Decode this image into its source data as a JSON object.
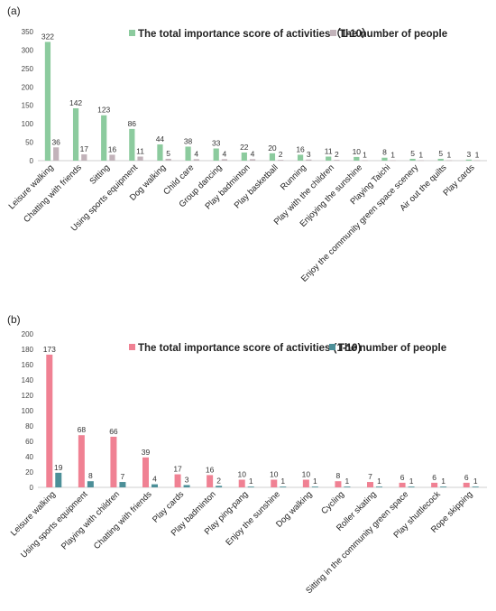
{
  "chart_data": [
    {
      "type": "bar",
      "panel_label": "(a)",
      "categories": [
        "Leisure walking",
        "Chatting with friends",
        "Sitting",
        "Using sports equipment",
        "Dog walking",
        "Child care",
        "Group dancing",
        "Play badminton",
        "Play basketball",
        "Running",
        "Play with the children",
        "Enjoying the sunshine",
        "Playing Taichi",
        "Enjoy the community green space scenery",
        "Air out the quilts",
        "Play cards"
      ],
      "series": [
        {
          "name": "The total importance score of activities（1-10）",
          "color": "#8ccb9e",
          "values": [
            322,
            142,
            123,
            86,
            44,
            38,
            33,
            22,
            20,
            16,
            11,
            10,
            8,
            5,
            5,
            3
          ]
        },
        {
          "name": "The number of people",
          "color": "#c2b3ba",
          "values": [
            36,
            17,
            16,
            11,
            5,
            4,
            4,
            4,
            2,
            3,
            2,
            1,
            1,
            1,
            1,
            1
          ]
        }
      ],
      "ylim": [
        0,
        350
      ],
      "yticks": [
        0,
        50,
        100,
        150,
        200,
        250,
        300,
        350
      ],
      "legend_position": "top-right",
      "grid": false
    },
    {
      "type": "bar",
      "panel_label": "(b)",
      "categories": [
        "Leisure walking",
        "Using sports equipment",
        "Playing with children",
        "Chatting with friends",
        "Play cards",
        "Play badminton",
        "Play ping-pang",
        "Enjoy the sunshine",
        "Dog walking",
        "Cycling",
        "Roller skating",
        "Sitting in the community green space",
        "Play shuttlecock",
        "Rope skipping"
      ],
      "series": [
        {
          "name": "The total importance score of activities (1-10)",
          "color": "#f08193",
          "values": [
            173,
            68,
            66,
            39,
            17,
            16,
            10,
            10,
            10,
            8,
            7,
            6,
            6,
            6
          ]
        },
        {
          "name": "The number of people",
          "color": "#4c8f98",
          "values": [
            19,
            8,
            7,
            4,
            3,
            2,
            1,
            1,
            1,
            1,
            1,
            1,
            1,
            1
          ]
        }
      ],
      "ylim": [
        0,
        200
      ],
      "yticks": [
        0,
        20,
        40,
        60,
        80,
        100,
        120,
        140,
        160,
        180,
        200
      ],
      "legend_position": "top-right",
      "grid": false
    }
  ]
}
